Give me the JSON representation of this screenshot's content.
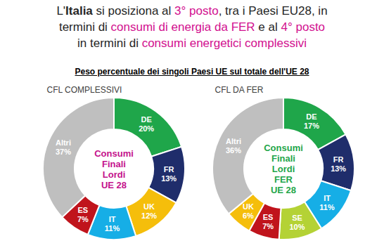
{
  "header": {
    "title": [
      [
        {
          "text": "L'"
        },
        {
          "text": "Italia",
          "bold": true
        },
        {
          "text": " si posiziona al "
        },
        {
          "text": "3° posto",
          "color": "#d2108f"
        },
        {
          "text": ", tra i Paesi EU28, in"
        }
      ],
      [
        {
          "text": "termini di "
        },
        {
          "text": "consumi di energia da FER",
          "color": "#d2108f"
        },
        {
          "text": " e al "
        },
        {
          "text": "4° posto",
          "color": "#d2108f"
        }
      ],
      [
        {
          "text": "in termini di "
        },
        {
          "text": "consumi energetici complessivi",
          "color": "#d2108f"
        }
      ]
    ],
    "subtitle": "Peso percentuale dei singoli Paesi UE sul totale dell'UE 28"
  },
  "chart_data": [
    {
      "type": "pie",
      "title": "CFL COMPLESSIVI",
      "center_label": [
        "Consumi",
        "Finali",
        "Lordi",
        "UE 28"
      ],
      "color": "#c4128c",
      "categories": [
        "DE",
        "FR",
        "UK",
        "IT",
        "ES",
        "Altri"
      ],
      "values": [
        20,
        13,
        12,
        11,
        7,
        37
      ],
      "value_labels": [
        "20%",
        "13%",
        "12%",
        "11%",
        "7%",
        "37%"
      ],
      "colors": [
        "#1fa64a",
        "#1f2d6b",
        "#f5be0b",
        "#16aee6",
        "#c0141c",
        "#bfbfbf"
      ],
      "data_labels": true
    },
    {
      "type": "pie",
      "title": "CFL DA FER",
      "center_label": [
        "Consumi",
        "Finali",
        "Lordi",
        "FER",
        "UE 28"
      ],
      "color": "#1fa64a",
      "categories": [
        "DE",
        "FR",
        "IT",
        "SE",
        "ES",
        "UK",
        "Altri"
      ],
      "values": [
        17,
        13,
        11,
        10,
        7,
        6,
        36
      ],
      "value_labels": [
        "17%",
        "13%",
        "11%",
        "10%",
        "7%",
        "6%",
        "36%"
      ],
      "colors": [
        "#1fa64a",
        "#1f2d6b",
        "#16aee6",
        "#b4d235",
        "#c0141c",
        "#f5be0b",
        "#bfbfbf"
      ],
      "data_labels": true
    }
  ]
}
